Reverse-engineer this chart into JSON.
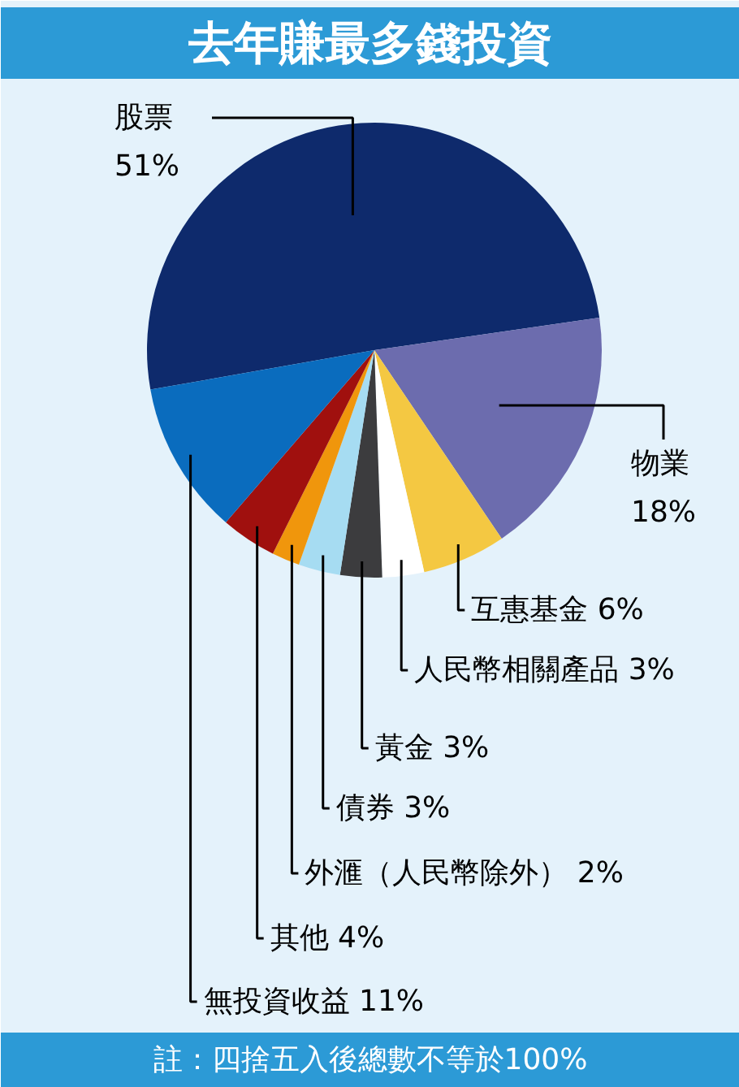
{
  "chart_data": {
    "type": "pie",
    "title": "去年賺最多錢投資",
    "categories": [
      "股票",
      "物業",
      "互惠基金",
      "人民幣相關產品",
      "黃金",
      "債券",
      "外滙（人民幣除外）",
      "其他",
      "無投資收益"
    ],
    "values": [
      51,
      18,
      6,
      3,
      3,
      3,
      2,
      4,
      11
    ],
    "value_labels": [
      "51%",
      "18%",
      "6%",
      "3%",
      "3%",
      "3%",
      "2%",
      "4%",
      "11%"
    ],
    "colors": [
      "#0e2a6c",
      "#6c6cae",
      "#f4c842",
      "#ffffff",
      "#3c3c3e",
      "#a6dcf2",
      "#f0960c",
      "#a0100e",
      "#0a6cbe"
    ],
    "annotations": [
      "註：四捨五入後總數不等於100%"
    ]
  }
}
